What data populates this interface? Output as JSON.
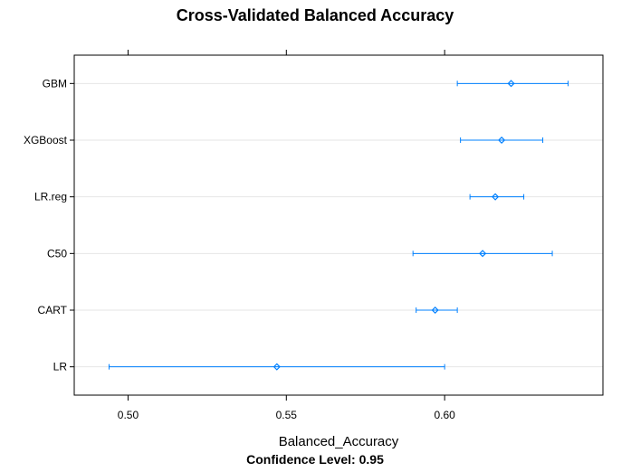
{
  "chart_data": {
    "type": "dotplot",
    "title": "Cross-Validated Balanced Accuracy",
    "xlabel": "Balanced_Accuracy",
    "subtitle": "Confidence Level: 0.95",
    "xlim": [
      0.483,
      0.65
    ],
    "xticks": [
      {
        "value": 0.5,
        "label": "0.50"
      },
      {
        "value": 0.55,
        "label": "0.55"
      },
      {
        "value": 0.6,
        "label": "0.60"
      }
    ],
    "grid": "horizontal",
    "point_color": "#0080ff",
    "models": [
      {
        "name": "GBM",
        "estimate": 0.621,
        "lower": 0.604,
        "upper": 0.639
      },
      {
        "name": "XGBoost",
        "estimate": 0.618,
        "lower": 0.605,
        "upper": 0.631
      },
      {
        "name": "LR.reg",
        "estimate": 0.616,
        "lower": 0.608,
        "upper": 0.625
      },
      {
        "name": "C50",
        "estimate": 0.612,
        "lower": 0.59,
        "upper": 0.634
      },
      {
        "name": "CART",
        "estimate": 0.597,
        "lower": 0.591,
        "upper": 0.604
      },
      {
        "name": "LR",
        "estimate": 0.547,
        "lower": 0.494,
        "upper": 0.6
      }
    ]
  }
}
